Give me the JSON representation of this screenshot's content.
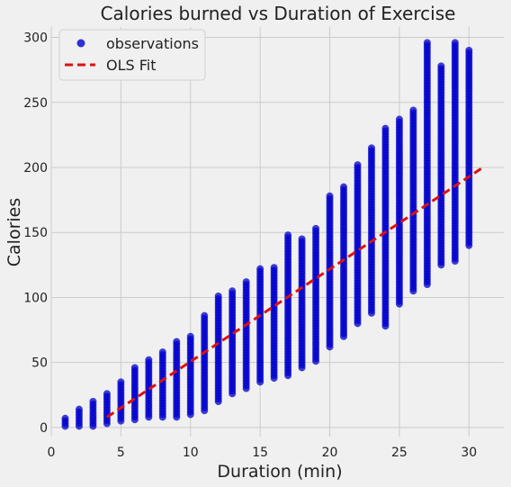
{
  "chart_data": {
    "type": "scatter",
    "title": "Calories burned vs Duration of Exercise",
    "xlabel": "Duration (min)",
    "ylabel": "Calories",
    "xlim": [
      0,
      32.5
    ],
    "ylim": [
      -7,
      308
    ],
    "xticks": [
      0,
      5,
      10,
      15,
      20,
      25,
      30
    ],
    "yticks": [
      0,
      50,
      100,
      150,
      200,
      250,
      300
    ],
    "grid": true,
    "legend_position": "top-left",
    "colors": {
      "observations": "#0000cc",
      "fit": "#dd1111",
      "background": "#f0f0f0",
      "grid": "#cbcbcb"
    },
    "series": [
      {
        "name": "observations",
        "kind": "scatter",
        "ranges_by_duration": [
          {
            "x": 1,
            "ymin": 1,
            "ymax": 7
          },
          {
            "x": 2,
            "ymin": 1,
            "ymax": 14
          },
          {
            "x": 3,
            "ymin": 1,
            "ymax": 20
          },
          {
            "x": 4,
            "ymin": 3,
            "ymax": 26
          },
          {
            "x": 5,
            "ymin": 5,
            "ymax": 35
          },
          {
            "x": 6,
            "ymin": 6,
            "ymax": 46
          },
          {
            "x": 7,
            "ymin": 8,
            "ymax": 52
          },
          {
            "x": 8,
            "ymin": 8,
            "ymax": 58
          },
          {
            "x": 9,
            "ymin": 8,
            "ymax": 66
          },
          {
            "x": 10,
            "ymin": 10,
            "ymax": 70
          },
          {
            "x": 11,
            "ymin": 13,
            "ymax": 86
          },
          {
            "x": 12,
            "ymin": 20,
            "ymax": 101
          },
          {
            "x": 13,
            "ymin": 26,
            "ymax": 105
          },
          {
            "x": 14,
            "ymin": 30,
            "ymax": 112
          },
          {
            "x": 15,
            "ymin": 35,
            "ymax": 122
          },
          {
            "x": 16,
            "ymin": 38,
            "ymax": 123
          },
          {
            "x": 17,
            "ymin": 40,
            "ymax": 148
          },
          {
            "x": 18,
            "ymin": 46,
            "ymax": 145
          },
          {
            "x": 19,
            "ymin": 51,
            "ymax": 153
          },
          {
            "x": 20,
            "ymin": 62,
            "ymax": 178
          },
          {
            "x": 21,
            "ymin": 70,
            "ymax": 185
          },
          {
            "x": 22,
            "ymin": 80,
            "ymax": 202
          },
          {
            "x": 23,
            "ymin": 88,
            "ymax": 215
          },
          {
            "x": 24,
            "ymin": 78,
            "ymax": 230
          },
          {
            "x": 25,
            "ymin": 95,
            "ymax": 237
          },
          {
            "x": 26,
            "ymin": 105,
            "ymax": 244
          },
          {
            "x": 27,
            "ymin": 110,
            "ymax": 296
          },
          {
            "x": 28,
            "ymin": 125,
            "ymax": 278
          },
          {
            "x": 29,
            "ymin": 128,
            "ymax": 296
          },
          {
            "x": 30,
            "ymin": 140,
            "ymax": 290
          }
        ]
      },
      {
        "name": "OLS Fit",
        "kind": "line",
        "x": [
          4,
          31
        ],
        "y": [
          8,
          200
        ]
      }
    ]
  }
}
